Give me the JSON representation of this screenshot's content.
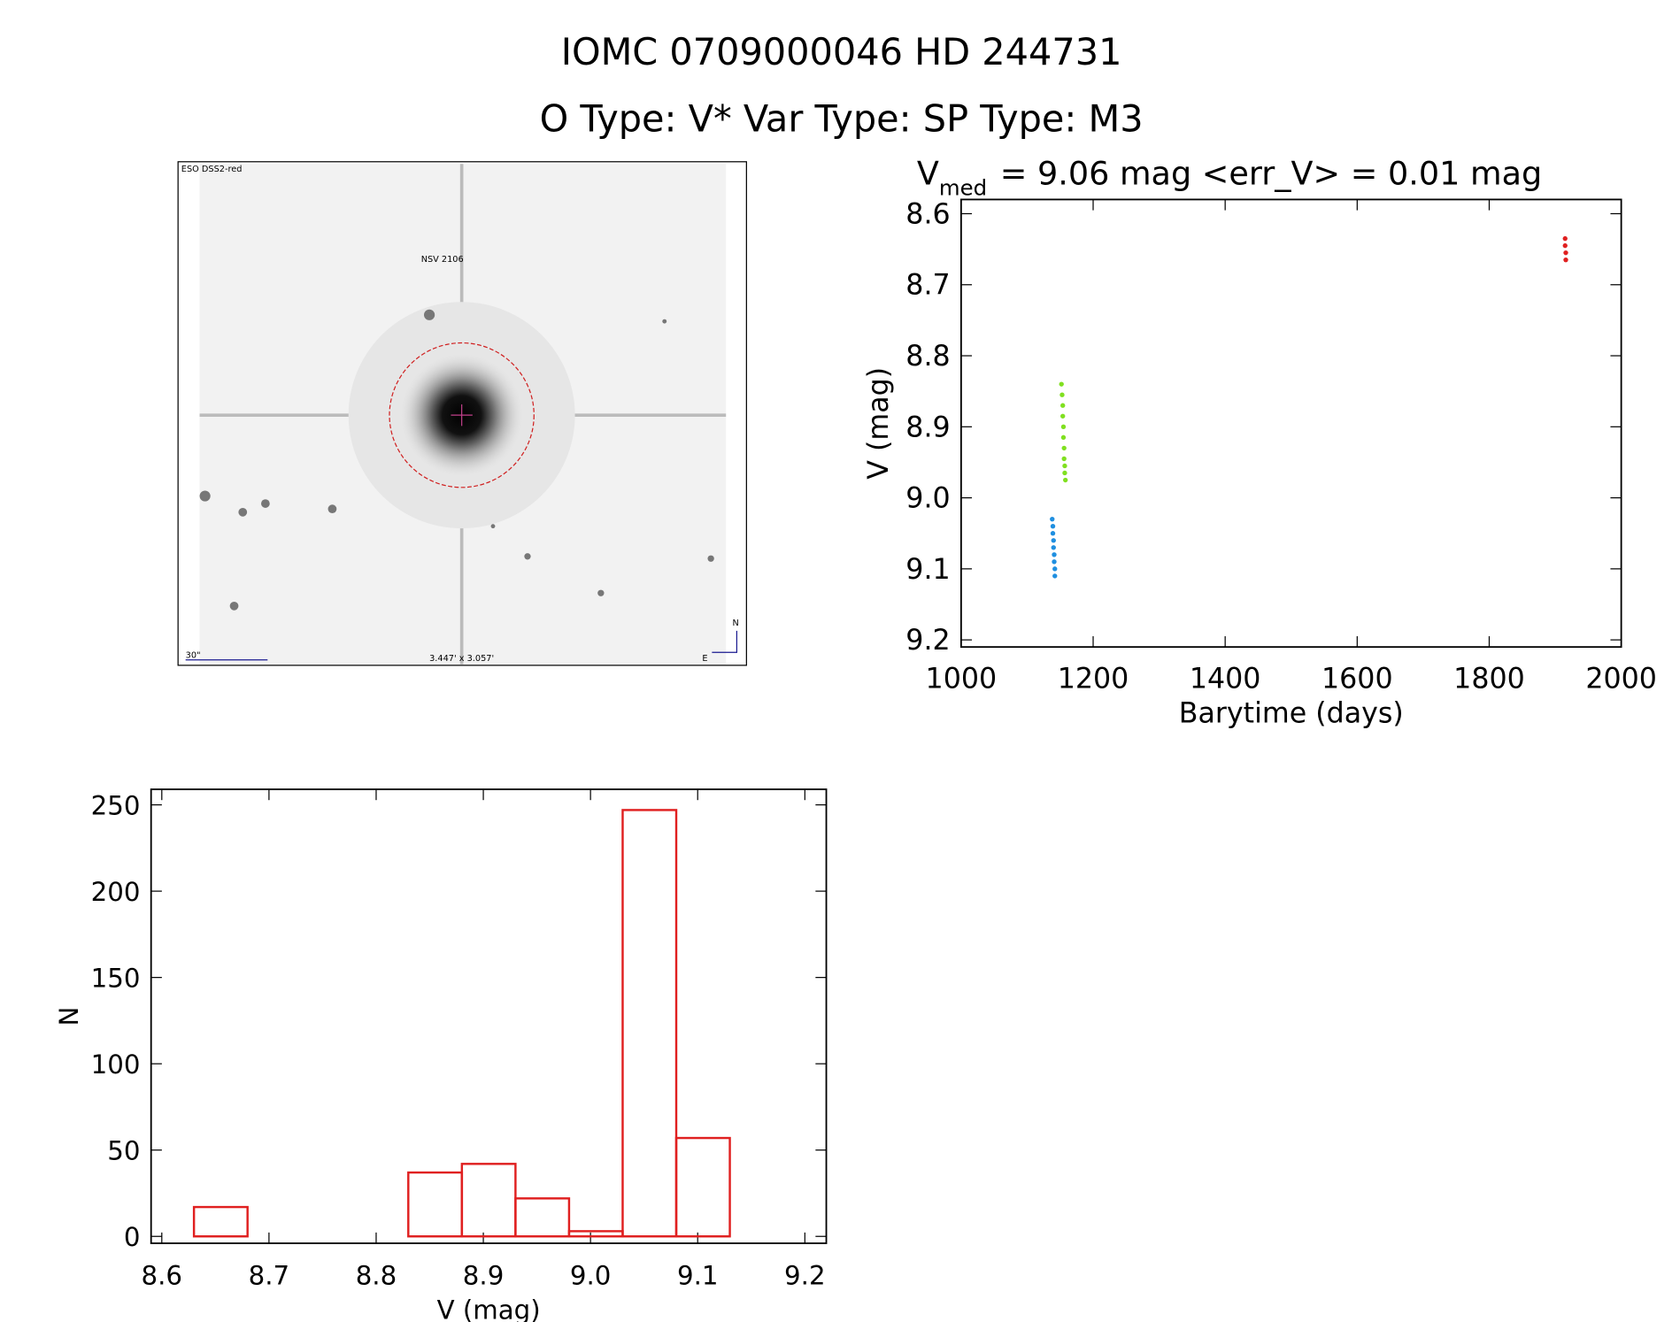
{
  "figure": {
    "title": "IOMC 0709000046    HD 244731",
    "subtitle": "O Type: V*  Var Type:    SP Type: M3"
  },
  "image": {
    "survey": "ESO DSS2-red",
    "object": "NSV 2106",
    "scale": "30\"",
    "field": "3.447' x 3.057'",
    "north": "N",
    "east": "E"
  },
  "chart_data": [
    {
      "type": "scatter",
      "title": "V",
      "title_subscript": "med",
      "title_rest": "= 9.06 mag <err_V> = 0.01 mag",
      "x_label": "Barytime (days)",
      "y_label": "V (mag)",
      "xlim": [
        1000,
        2000
      ],
      "ylim": [
        9.21,
        8.58
      ],
      "xticks": [
        1000,
        1200,
        1400,
        1600,
        1800,
        2000
      ],
      "yticks": [
        8.6,
        8.7,
        8.8,
        8.9,
        {
          "value": 9,
          "label": "9.0"
        },
        9.1,
        9.2
      ],
      "series": [
        {
          "color": "#1f8fe0",
          "x": [
            1138,
            1139,
            1139,
            1140,
            1140,
            1141,
            1141,
            1142,
            1142
          ],
          "values": [
            9.03,
            9.04,
            9.05,
            9.06,
            9.07,
            9.08,
            9.09,
            9.1,
            9.11
          ]
        },
        {
          "color": "#80e020",
          "x": [
            1152,
            1153,
            1154,
            1154,
            1155,
            1155,
            1156,
            1156,
            1157,
            1157,
            1158
          ],
          "values": [
            8.84,
            8.855,
            8.87,
            8.885,
            8.9,
            8.915,
            8.93,
            8.945,
            8.955,
            8.965,
            8.975
          ]
        },
        {
          "color": "#e02020",
          "x": [
            1915,
            1915,
            1916,
            1916
          ],
          "values": [
            8.635,
            8.645,
            8.655,
            8.665
          ]
        }
      ]
    },
    {
      "type": "histogram",
      "x_label": "V (mag)",
      "y_label": "N",
      "color": "#e02020",
      "bins": [
        8.63,
        8.68,
        8.73,
        8.78,
        8.83,
        8.88,
        8.93,
        8.98,
        9.03,
        9.08,
        9.13
      ],
      "counts": [
        17,
        0,
        0,
        0,
        37,
        42,
        22,
        3,
        247,
        57
      ],
      "xlim": [
        8.59,
        9.22
      ],
      "ylim": [
        -4,
        259
      ],
      "xticks": [
        8.6,
        8.7,
        8.8,
        8.9,
        {
          "value": 9,
          "label": "9.0"
        },
        9.1,
        9.2
      ],
      "yticks": [
        0,
        50,
        100,
        150,
        200,
        250
      ]
    }
  ]
}
